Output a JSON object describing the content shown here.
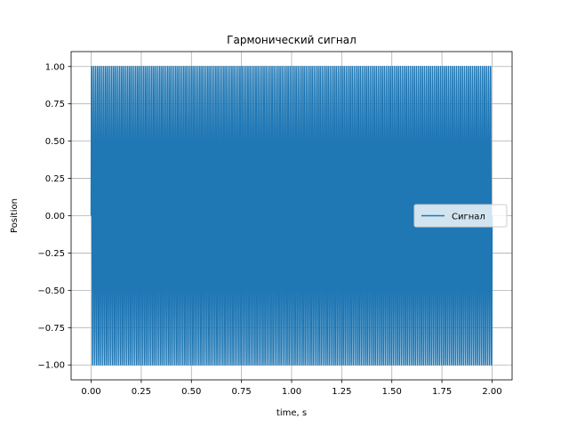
{
  "chart_data": {
    "type": "line",
    "title": "Гармонический сигнал",
    "xlabel": "time, s",
    "ylabel": "Position",
    "xlim": [
      -0.1,
      2.1
    ],
    "ylim": [
      -1.1,
      1.1
    ],
    "xticks": [
      0.0,
      0.25,
      0.5,
      0.75,
      1.0,
      1.25,
      1.5,
      1.75,
      2.0
    ],
    "xtick_labels": [
      "0.00",
      "0.25",
      "0.50",
      "0.75",
      "1.00",
      "1.25",
      "1.50",
      "1.75",
      "2.00"
    ],
    "yticks": [
      -1.0,
      -0.75,
      -0.5,
      -0.25,
      0.0,
      0.25,
      0.5,
      0.75,
      1.0
    ],
    "ytick_labels": [
      "−1.00",
      "−0.75",
      "−0.50",
      "−0.25",
      "0.00",
      "0.25",
      "0.50",
      "0.75",
      "1.00"
    ],
    "grid": true,
    "legend": "center-right",
    "series": [
      {
        "name": "Сигнал",
        "color": "#1f77b4",
        "function": "sin",
        "amplitude": 1.0,
        "frequency_hz": 100,
        "t_start": 0.0,
        "t_end": 2.0
      }
    ]
  }
}
